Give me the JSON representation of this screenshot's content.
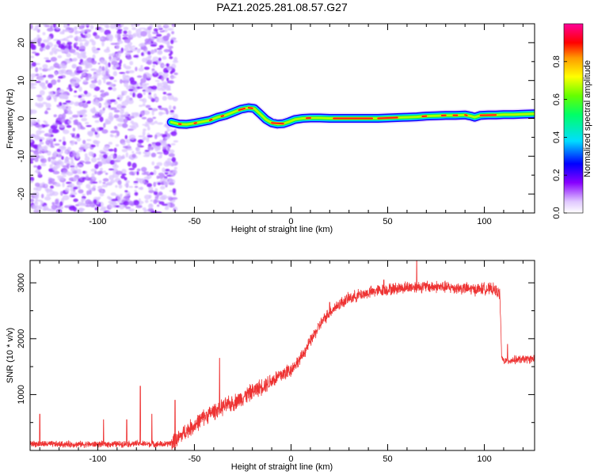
{
  "title": "PAZ1.2025.281.08.57.G27",
  "chart_data": [
    {
      "type": "heatmap",
      "name": "spectrogram",
      "xlabel": "Height of straight line (km)",
      "ylabel": "Frequency (Hz)",
      "xlim": [
        -135,
        126
      ],
      "ylim": [
        -25,
        25
      ],
      "xticks": [
        -100,
        -50,
        0,
        50,
        100
      ],
      "yticks": [
        -20,
        -10,
        0,
        10,
        20
      ],
      "noise_region_x": [
        -135,
        -62
      ],
      "signal_track": {
        "x": [
          -62,
          -58,
          -54,
          -50,
          -46,
          -42,
          -38,
          -34,
          -30,
          -26,
          -22,
          -19,
          -16,
          -13,
          -10,
          -7,
          -4,
          -1,
          2,
          6,
          10,
          15,
          20,
          25,
          30,
          35,
          40,
          45,
          50,
          55,
          60,
          65,
          70,
          75,
          80,
          85,
          90,
          93,
          95,
          98,
          102,
          106,
          110,
          115,
          120,
          126
        ],
        "y": [
          -1.0,
          -1.5,
          -1.6,
          -1.3,
          -0.9,
          -0.5,
          0.3,
          0.8,
          1.6,
          2.4,
          2.8,
          2.6,
          1.2,
          -0.3,
          -1.2,
          -1.5,
          -1.4,
          -0.9,
          -0.3,
          0.0,
          0.1,
          0.1,
          0.0,
          0.0,
          0.0,
          0.0,
          0.0,
          0.0,
          0.1,
          0.2,
          0.3,
          0.4,
          0.6,
          0.7,
          0.8,
          0.8,
          0.9,
          0.6,
          0.3,
          0.8,
          0.9,
          0.9,
          1.0,
          1.0,
          1.1,
          1.2
        ]
      },
      "colorbar": {
        "label": "Normalized spectral amplitude",
        "range": [
          0,
          1
        ],
        "ticks": [
          "0.0",
          "0.2",
          "0.4",
          "0.6",
          "0.8"
        ]
      }
    },
    {
      "type": "line",
      "name": "snr",
      "xlabel": "Height of straight line (km)",
      "ylabel": "SNR (10 * v/v)",
      "xlim": [
        -135,
        126
      ],
      "ylim": [
        0,
        3400
      ],
      "xticks": [
        -100,
        -50,
        0,
        50,
        100
      ],
      "yticks": [
        1000,
        2000,
        3000
      ],
      "color": "#ee3333",
      "series": [
        {
          "name": "SNR",
          "x": [
            -135,
            -120,
            -100,
            -80,
            -65,
            -60,
            -55,
            -50,
            -45,
            -40,
            -35,
            -30,
            -25,
            -20,
            -15,
            -10,
            -5,
            0,
            5,
            10,
            15,
            20,
            25,
            30,
            35,
            40,
            45,
            50,
            55,
            60,
            65,
            70,
            75,
            80,
            85,
            90,
            95,
            100,
            105,
            108,
            109,
            110,
            115,
            120,
            126
          ],
          "values": [
            120,
            110,
            110,
            120,
            110,
            150,
            330,
            450,
            600,
            700,
            780,
            850,
            950,
            1050,
            1150,
            1250,
            1350,
            1450,
            1650,
            1950,
            2250,
            2480,
            2620,
            2720,
            2780,
            2820,
            2860,
            2880,
            2900,
            2920,
            2930,
            2930,
            2930,
            2920,
            2910,
            2900,
            2880,
            2900,
            2880,
            2800,
            1650,
            1600,
            1620,
            1630,
            1640
          ]
        }
      ],
      "spikes": [
        {
          "x": -130,
          "value": 650
        },
        {
          "x": -97,
          "value": 550
        },
        {
          "x": -85,
          "value": 550
        },
        {
          "x": -78,
          "value": 1150
        },
        {
          "x": -72,
          "value": 650
        },
        {
          "x": -60,
          "value": 900
        },
        {
          "x": -37,
          "value": 1650
        },
        {
          "x": 20,
          "value": 2650
        },
        {
          "x": 48,
          "value": 3050
        },
        {
          "x": 65,
          "value": 3400
        },
        {
          "x": 112,
          "value": 1900
        }
      ]
    }
  ]
}
